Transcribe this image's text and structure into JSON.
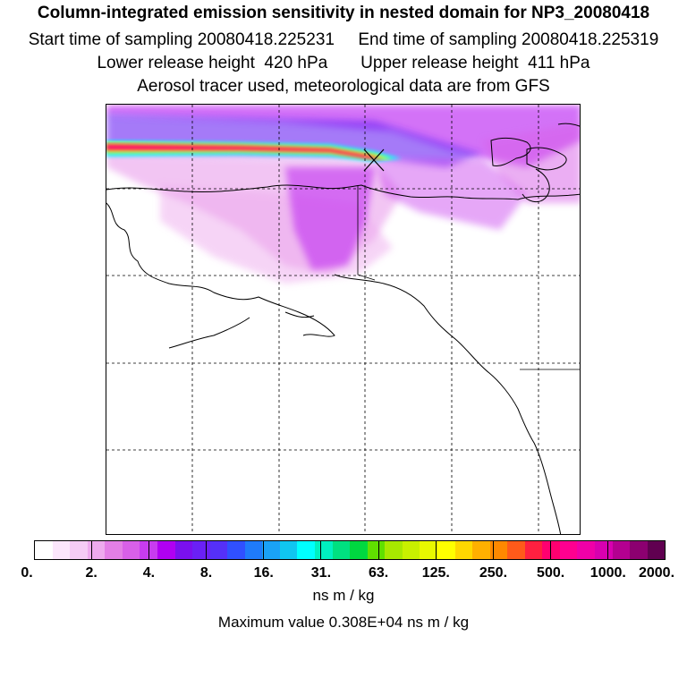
{
  "titles": {
    "main": "Column-integrated emission sensitivity in nested domain for NP3_20080418",
    "line2": "Start time of sampling 20080418.225231     End time of sampling 20080418.225319",
    "line3": "Lower release height  420 hPa       Upper release height  411 hPa",
    "line4": "Aerosol tracer used, meteorological data are from GFS"
  },
  "colorbar": {
    "colors": [
      "#ffffff",
      "#fbe6fb",
      "#f5ccf5",
      "#eeaaee",
      "#e37fe6",
      "#d860e8",
      "#c83cef",
      "#b000f2",
      "#7a10ee",
      "#6a20f5",
      "#5530f8",
      "#3050ff",
      "#1f7bfa",
      "#1aa2f6",
      "#10c6f0",
      "#00ffff",
      "#00f0c0",
      "#00e080",
      "#00d840",
      "#60e000",
      "#a8e800",
      "#c8f000",
      "#e8f800",
      "#ffff00",
      "#ffd800",
      "#ffb000",
      "#ff8800",
      "#ff5a1a",
      "#ff2040",
      "#ff0070",
      "#ff0090",
      "#f000a8",
      "#d800b0",
      "#b40090",
      "#8c0070",
      "#600050"
    ],
    "labels": [
      "0.",
      "2.",
      "4.",
      "8.",
      "16.",
      "31.",
      "63.",
      "125.",
      "250.",
      "500.",
      "1000.",
      "2000."
    ]
  },
  "units": "ns m / kg",
  "max_value": "Maximum value  0.308E+04 ns m / kg"
}
